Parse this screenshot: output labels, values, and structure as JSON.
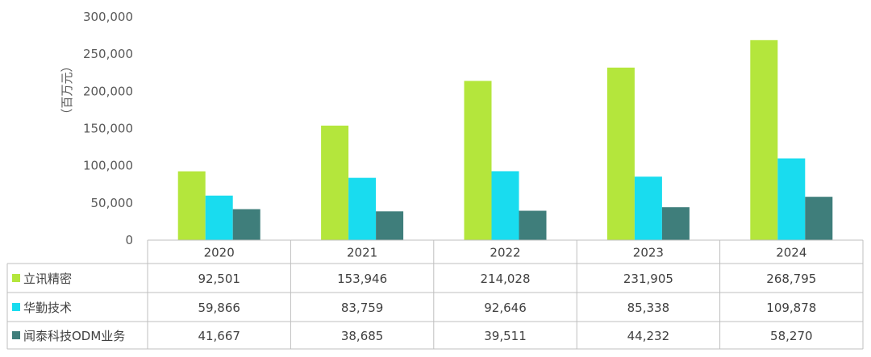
{
  "chart_data": {
    "type": "bar",
    "categories": [
      "2020",
      "2021",
      "2022",
      "2023",
      "2024"
    ],
    "ylabel": "（百万元）",
    "ylim": [
      0,
      300000
    ],
    "yticks": [
      "0",
      "50,000",
      "100,000",
      "150,000",
      "200,000",
      "250,000",
      "300,000"
    ],
    "grid": false,
    "legend": "table",
    "series": [
      {
        "name": "立讯精密",
        "color": "#b4e63c",
        "values": [
          92501,
          153946,
          214028,
          231905,
          268795
        ],
        "labels": [
          "92,501",
          "153,946",
          "214,028",
          "231,905",
          "268,795"
        ]
      },
      {
        "name": "华勤技术",
        "color": "#19dcef",
        "values": [
          59866,
          83759,
          92646,
          85338,
          109878
        ],
        "labels": [
          "59,866",
          "83,759",
          "92,646",
          "85,338",
          "109,878"
        ]
      },
      {
        "name": "闻泰科技ODM业务",
        "color": "#3f7e7b",
        "values": [
          41667,
          38685,
          39511,
          44232,
          58270
        ],
        "labels": [
          "41,667",
          "38,685",
          "39,511",
          "44,232",
          "58,270"
        ]
      }
    ]
  }
}
